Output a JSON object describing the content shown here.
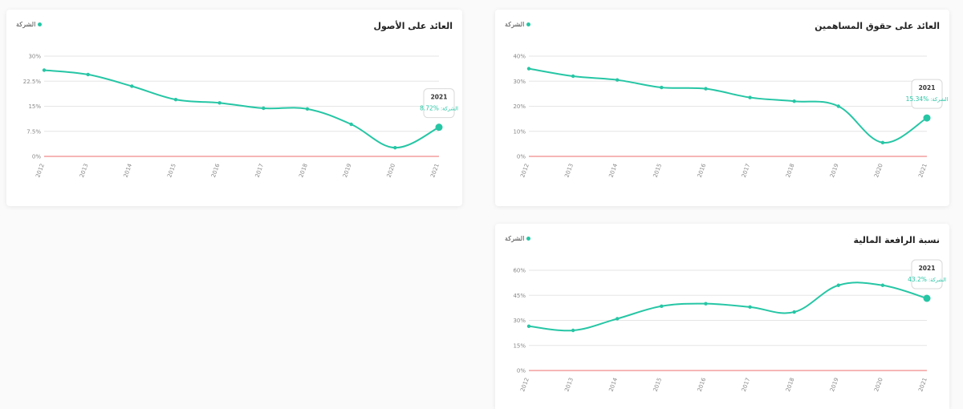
{
  "colors": {
    "line": "#26c6a5",
    "zero_line": "#f08a8a",
    "grid": "#e6e6e6"
  },
  "cards": {
    "roe": {
      "title": "العائد على حقوق المساهمين",
      "legend": "الشركة",
      "tooltip": {
        "year": "2021",
        "label": "الشركة:",
        "value": "%15.34"
      }
    },
    "roa": {
      "title": "العائد على الأصول",
      "legend": "الشركة",
      "tooltip": {
        "year": "2021",
        "label": "الشركة:",
        "value": "%8.72"
      }
    },
    "lev": {
      "title": "نسبة الرافعة المالية",
      "legend": "الشركة",
      "tooltip": {
        "year": "2021",
        "label": "الشركة:",
        "value": "%43.2"
      }
    }
  },
  "chart_data": [
    {
      "id": "roe",
      "type": "line",
      "title": "العائد على حقوق المساهمين",
      "categories": [
        "2012",
        "2013",
        "2014",
        "2015",
        "2016",
        "2017",
        "2018",
        "2019",
        "2020",
        "2021"
      ],
      "series": [
        {
          "name": "الشركة",
          "values": [
            35,
            32,
            30.5,
            27.5,
            27,
            23.5,
            22,
            20,
            5.5,
            15.34
          ]
        }
      ],
      "yticks": [
        "0%",
        "10%",
        "20%",
        "30%",
        "40%"
      ],
      "ylim": [
        0,
        40
      ],
      "grid": true,
      "legend": "top-left"
    },
    {
      "id": "roa",
      "type": "line",
      "title": "العائد على الأصول",
      "categories": [
        "2012",
        "2013",
        "2014",
        "2015",
        "2016",
        "2017",
        "2018",
        "2019",
        "2020",
        "2021"
      ],
      "series": [
        {
          "name": "الشركة",
          "values": [
            25.8,
            24.5,
            21,
            17,
            16,
            14.4,
            14.2,
            9.6,
            2.6,
            8.72
          ]
        }
      ],
      "yticks": [
        "0%",
        "7.5%",
        "15%",
        "22.5%",
        "30%"
      ],
      "ylim": [
        0,
        30
      ],
      "grid": true,
      "legend": "top-left"
    },
    {
      "id": "lev",
      "type": "line",
      "title": "نسبة الرافعة المالية",
      "categories": [
        "2012",
        "2013",
        "2014",
        "2015",
        "2016",
        "2017",
        "2018",
        "2019",
        "2020",
        "2021"
      ],
      "series": [
        {
          "name": "الشركة",
          "values": [
            26.5,
            24,
            31,
            38.5,
            40,
            38,
            35,
            51,
            51,
            43.2
          ]
        }
      ],
      "yticks": [
        "0%",
        "15%",
        "30%",
        "45%",
        "60%"
      ],
      "ylim": [
        0,
        60
      ],
      "grid": true,
      "legend": "top-left"
    }
  ]
}
